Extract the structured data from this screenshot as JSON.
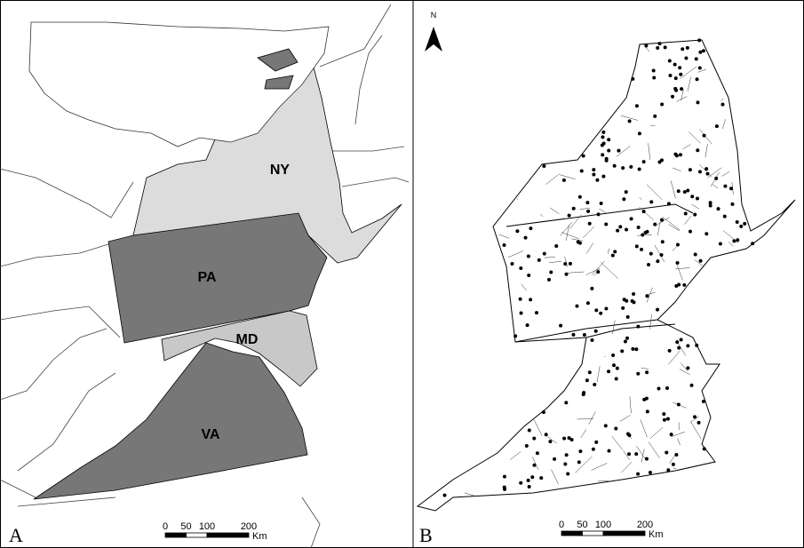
{
  "panels": [
    {
      "label": "A",
      "state_labels": [
        "NY",
        "PA",
        "MD",
        "VA"
      ],
      "scale_bar": {
        "ticks": [
          0,
          50,
          100,
          200
        ],
        "unit": "Km"
      }
    },
    {
      "label": "B",
      "north_arrow": "N",
      "scale_bar": {
        "ticks": [
          0,
          50,
          100,
          200
        ],
        "unit": "Km"
      }
    }
  ]
}
